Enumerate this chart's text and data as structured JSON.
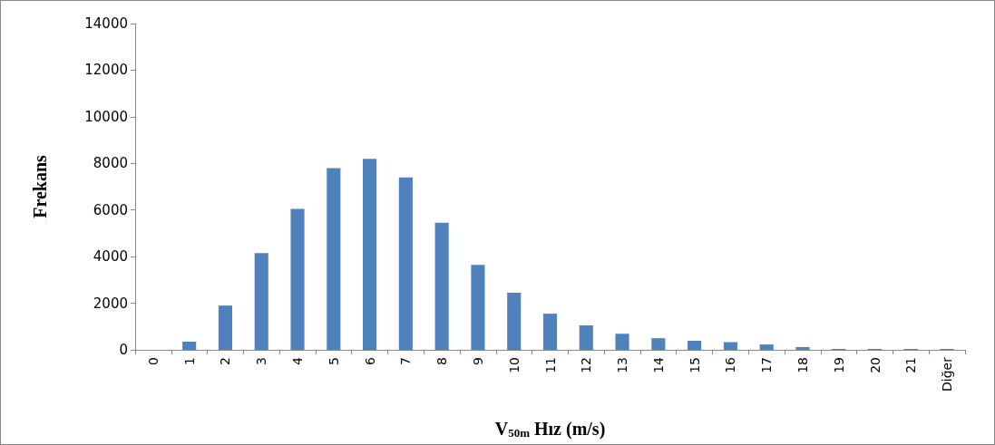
{
  "chart_data": {
    "type": "bar",
    "xlabel": "V$_{50m}$ Hız (m/s)",
    "ylabel": "Frekans",
    "categories": [
      "0",
      "1",
      "2",
      "3",
      "4",
      "5",
      "6",
      "7",
      "8",
      "9",
      "10",
      "11",
      "12",
      "13",
      "14",
      "15",
      "16",
      "17",
      "18",
      "19",
      "20",
      "21",
      "Diğer"
    ],
    "values": [
      0,
      350,
      1900,
      4150,
      6050,
      7800,
      8200,
      7400,
      5450,
      3650,
      2450,
      1550,
      1050,
      690,
      500,
      390,
      330,
      230,
      120,
      40,
      40,
      40,
      40
    ],
    "color": "#4f81bd",
    "ylim": [
      0,
      14000
    ],
    "yticks": [
      0,
      2000,
      4000,
      6000,
      8000,
      10000,
      12000,
      14000
    ],
    "grid": false
  }
}
